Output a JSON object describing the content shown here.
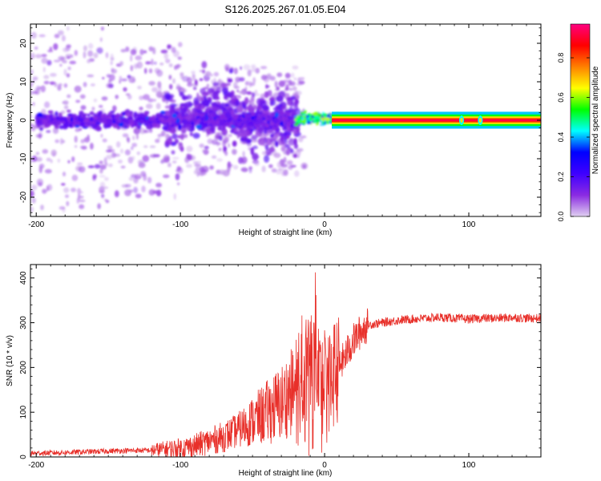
{
  "figure_title": "S126.2025.267.01.05.E04",
  "chart_data": [
    {
      "type": "heatmap",
      "title": "S126.2025.267.01.05.E04",
      "xlabel": "Height of straight line (km)",
      "ylabel": "Frequency (Hz)",
      "xlim": [
        -204,
        150
      ],
      "ylim": [
        -25,
        25
      ],
      "xticks": [
        -200,
        -100,
        0,
        100
      ],
      "yticks": [
        -20,
        -10,
        0,
        10,
        20
      ],
      "colorbar": {
        "label": "Normalized spectral amplitude",
        "range": [
          0.0,
          0.97
        ],
        "ticks": [
          0.0,
          0.2,
          0.4,
          0.6,
          0.8
        ],
        "colormap_stops": [
          "#e0d0f0",
          "#8a2be2",
          "#3f00ff",
          "#0000ff",
          "#00ffff",
          "#00ff00",
          "#ffff00",
          "#ff8000",
          "#ff0000",
          "#ff0080"
        ]
      },
      "description_points": [
        {
          "x_range": [
            -200,
            -20
          ],
          "freq_center": 0,
          "amplitude": 0.15
        },
        {
          "x_range": [
            -20,
            10
          ],
          "freq_center": 0,
          "amplitude": 0.45
        },
        {
          "x_range": [
            10,
            150
          ],
          "freq_center": 0,
          "amplitude": 0.9
        }
      ]
    },
    {
      "type": "line",
      "xlabel": "Height of straight line (km)",
      "ylabel": "SNR (10 * v/v)",
      "xlim": [
        -204,
        150
      ],
      "ylim": [
        0,
        430
      ],
      "xticks": [
        -200,
        -100,
        0,
        100
      ],
      "yticks": [
        0,
        100,
        200,
        300,
        400
      ],
      "series": [
        {
          "name": "SNR",
          "color": "#e8302a",
          "x": [
            -204,
            -180,
            -160,
            -140,
            -120,
            -100,
            -90,
            -80,
            -70,
            -60,
            -50,
            -40,
            -30,
            -25,
            -20,
            -15,
            -10,
            -5,
            0,
            5,
            10,
            15,
            20,
            25,
            30,
            40,
            50,
            60,
            70,
            80,
            90,
            100,
            110,
            120,
            130,
            140,
            150
          ],
          "values": [
            8,
            10,
            12,
            14,
            15,
            20,
            25,
            35,
            45,
            60,
            80,
            100,
            120,
            140,
            150,
            180,
            200,
            190,
            160,
            180,
            200,
            230,
            260,
            280,
            295,
            300,
            305,
            308,
            310,
            312,
            310,
            308,
            310,
            310,
            312,
            310,
            310
          ]
        }
      ]
    }
  ]
}
